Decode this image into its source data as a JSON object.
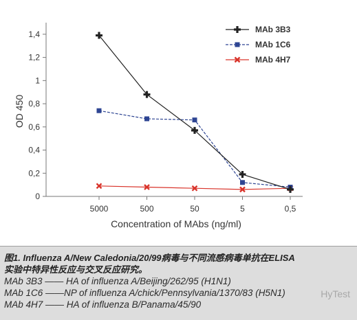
{
  "chart_data": {
    "type": "line",
    "title": "",
    "xlabel": "Concentration of MAbs (ng/ml)",
    "ylabel": "OD 450",
    "categories": [
      "5000",
      "500",
      "50",
      "5",
      "0,5"
    ],
    "yticks": [
      "0",
      "0,2",
      "0,4",
      "0,6",
      "0,8",
      "1",
      "1,2",
      "1,4"
    ],
    "ylim": [
      0,
      1.5
    ],
    "grid": false,
    "legend_position": "top-right",
    "series": [
      {
        "name": "MAb 3B3",
        "values": [
          1.39,
          0.88,
          0.57,
          0.19,
          0.06
        ],
        "color": "#222222",
        "style": "solid",
        "marker": "plus"
      },
      {
        "name": "MAb 1C6",
        "values": [
          0.74,
          0.67,
          0.66,
          0.12,
          0.08
        ],
        "color": "#2e4593",
        "style": "dashed",
        "marker": "square"
      },
      {
        "name": "MAb 4H7",
        "values": [
          0.09,
          0.08,
          0.07,
          0.06,
          0.07
        ],
        "color": "#d9342b",
        "style": "solid",
        "marker": "x"
      }
    ]
  },
  "caption": {
    "title_line1": "图1. Influenza A/New Caledonia/20/99病毒与不同流感病毒单抗在ELISA",
    "title_line2": "实验中特异性反应与交叉反应研究。",
    "lines": [
      "MAb 3B3 —— HA of influenza A/Beijing/262/95 (H1N1)",
      "MAb 1C6 ——NP of influenza A/chick/Pennsylvania/1370/83 (H5N1)",
      "MAb 4H7 —— HA of influenza B/Panama/45/90"
    ]
  },
  "watermark": "HyTest"
}
